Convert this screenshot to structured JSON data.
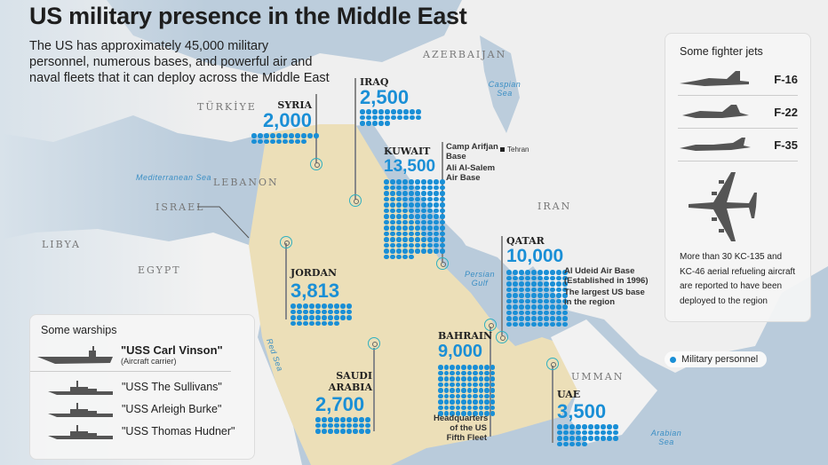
{
  "title": "US military presence in the Middle East",
  "subtitle": "The US has approximately 45,000 military personnel, numerous bases, and powerful air and naval fleets that it can deploy across the Middle East",
  "colors": {
    "sea": "#b9cbdb",
    "land": "#f2f2f2",
    "highlight_land": "#ecdfb8",
    "personnel_dot": "#1a8fd6",
    "marker": "#2fb0c0"
  },
  "map_labels": {
    "countries": [
      "TÜRKİYE",
      "AZERBAIJAN",
      "LEBANON",
      "ISRAEL",
      "LIBYA",
      "EGYPT",
      "IRAN",
      "UMMAN"
    ],
    "seas": [
      "Caspian Sea",
      "Mediterranean Sea",
      "Persian Gulf",
      "Red Sea",
      "Arabian Sea"
    ],
    "city": "Tehran"
  },
  "deployments": {
    "syria": {
      "name": "SYRIA",
      "personnel": "2,000"
    },
    "iraq": {
      "name": "IRAQ",
      "personnel": "2,500"
    },
    "kuwait": {
      "name": "KUWAIT",
      "personnel": "13,500",
      "note1": "Camp Arifjan Base",
      "note2": "Ali Al-Salem Air Base"
    },
    "qatar": {
      "name": "QATAR",
      "personnel": "10,000",
      "note1": "Al Udeid Air Base (Established in 1996)",
      "note2": "The largest US base in the region"
    },
    "jordan": {
      "name": "JORDAN",
      "personnel": "3,813"
    },
    "saudi": {
      "name": "SAUDI ARABIA",
      "personnel": "2,700"
    },
    "bahrain": {
      "name": "BAHRAIN",
      "personnel": "9,000",
      "note1": "Headquarters of the US Fifth Fleet"
    },
    "uae": {
      "name": "UAE",
      "personnel": "3,500"
    }
  },
  "jets": {
    "title": "Some fighter jets",
    "items": [
      {
        "label": "F-16",
        "icon": "f16-jet-icon"
      },
      {
        "label": "F-22",
        "icon": "f22-jet-icon"
      },
      {
        "label": "F-35",
        "icon": "f35-jet-icon"
      }
    ],
    "tanker_icon": "refueling-aircraft-icon",
    "tanker_note": "More than 30 KC-135 and KC-46 aerial refueling aircraft are reported to have been deployed to the region"
  },
  "legend": {
    "label": "Military personnel",
    "icon": "blue-dot"
  },
  "warships": {
    "title": "Some warships",
    "carrier": {
      "name": "\"USS Carl Vinson\"",
      "type": "(Aircraft carrier)",
      "icon": "aircraft-carrier-icon"
    },
    "destroyers": [
      {
        "name": "\"USS The Sullivans\"",
        "icon": "destroyer-icon"
      },
      {
        "name": "\"USS Arleigh Burke\"",
        "icon": "destroyer-icon"
      },
      {
        "name": "\"USS Thomas Hudner\"",
        "icon": "destroyer-icon"
      }
    ]
  }
}
